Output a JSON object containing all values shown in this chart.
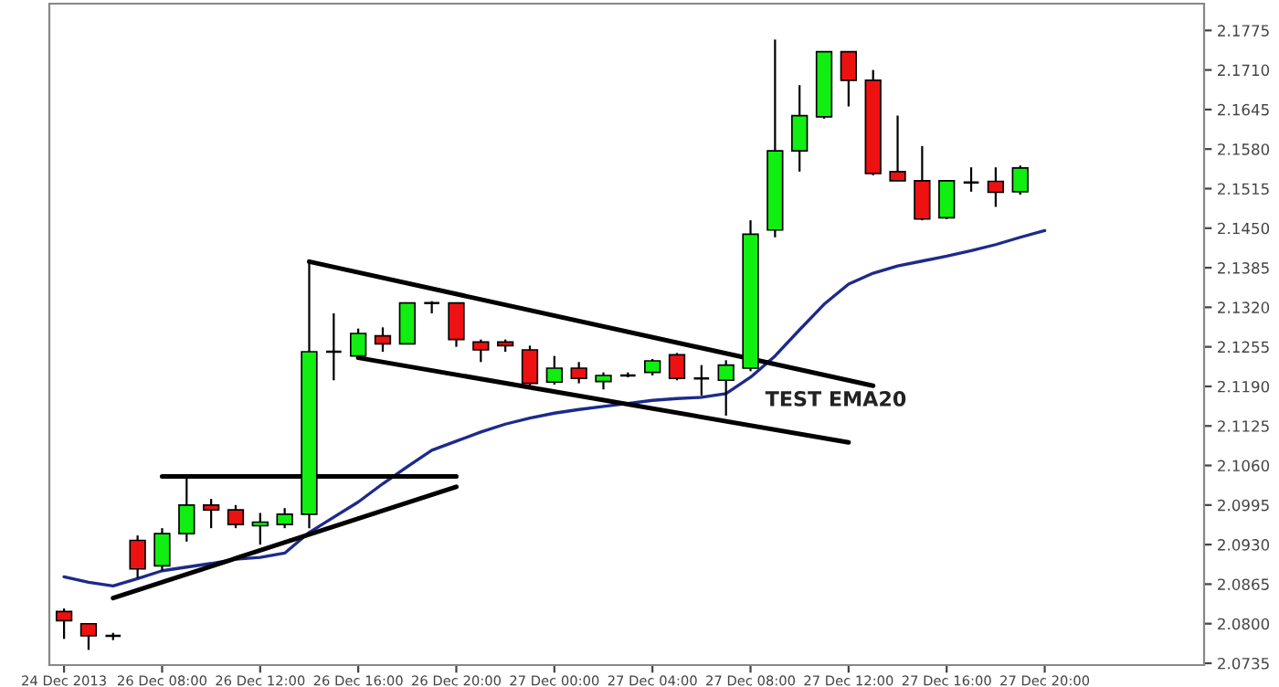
{
  "chart_data": {
    "type": "candlestick",
    "categories": [
      "24 Dec 2013",
      null,
      null,
      null,
      "26 Dec 08:00",
      null,
      null,
      null,
      "26 Dec 12:00",
      null,
      null,
      null,
      "26 Dec 16:00",
      null,
      null,
      null,
      "26 Dec 20:00",
      null,
      null,
      null,
      "27 Dec 00:00",
      null,
      null,
      null,
      "27 Dec 04:00",
      null,
      null,
      null,
      "27 Dec 08:00",
      null,
      null,
      null,
      "27 Dec 12:00",
      null,
      null,
      null,
      "27 Dec 16:00",
      null,
      null,
      null,
      "27 Dec 20:00",
      null,
      null,
      null,
      null,
      null,
      null
    ],
    "series": [
      {
        "ohlc": [
          [
            2.082,
            2.0825,
            2.0775,
            2.0805
          ],
          [
            2.08,
            2.08,
            2.0757,
            2.078
          ],
          [
            2.078,
            2.0785,
            2.0773,
            2.078
          ],
          [
            2.0937,
            2.0945,
            2.0875,
            2.089
          ],
          [
            2.0895,
            2.0957,
            2.0887,
            2.0948
          ],
          [
            2.0948,
            2.1042,
            2.0935,
            2.0995
          ],
          [
            2.0995,
            2.1005,
            2.0957,
            2.0987
          ],
          [
            2.0987,
            2.0995,
            2.0957,
            2.0963
          ],
          [
            2.0961,
            2.0982,
            2.093,
            2.0967
          ],
          [
            2.0963,
            2.099,
            2.0957,
            2.098
          ],
          [
            2.098,
            2.1395,
            2.0957,
            2.1247
          ],
          [
            2.1247,
            2.131,
            2.12,
            2.1247
          ],
          [
            2.124,
            2.1285,
            2.1235,
            2.1277
          ],
          [
            2.1273,
            2.1287,
            2.1247,
            2.126
          ],
          [
            2.126,
            2.1327,
            2.126,
            2.1327
          ],
          [
            2.1327,
            2.133,
            2.131,
            2.1327
          ],
          [
            2.1327,
            2.1327,
            2.1255,
            2.1267
          ],
          [
            2.1263,
            2.1267,
            2.123,
            2.125
          ],
          [
            2.1263,
            2.1267,
            2.1247,
            2.1257
          ],
          [
            2.125,
            2.1257,
            2.119,
            2.1195
          ],
          [
            2.1197,
            2.124,
            2.1193,
            2.122
          ],
          [
            2.122,
            2.123,
            2.1195,
            2.1203
          ],
          [
            2.1198,
            2.1213,
            2.1185,
            2.1208
          ],
          [
            2.1208,
            2.1213,
            2.1205,
            2.1208
          ],
          [
            2.1213,
            2.1235,
            2.1208,
            2.1232
          ],
          [
            2.1242,
            2.1245,
            2.12,
            2.1203
          ],
          [
            2.1203,
            2.1225,
            2.1175,
            2.1203
          ],
          [
            2.12,
            2.1233,
            2.1142,
            2.1225
          ],
          [
            2.122,
            2.1463,
            2.1215,
            2.144
          ],
          [
            2.1447,
            2.176,
            2.1435,
            2.1577
          ],
          [
            2.1577,
            2.1685,
            2.1543,
            2.1635
          ],
          [
            2.1633,
            2.174,
            2.163,
            2.174
          ],
          [
            2.174,
            2.174,
            2.165,
            2.1693
          ],
          [
            2.1693,
            2.171,
            2.1537,
            2.154
          ],
          [
            2.1543,
            2.1635,
            2.1528,
            2.1528
          ],
          [
            2.1528,
            2.1585,
            2.1463,
            2.1465
          ],
          [
            2.1467,
            2.1528,
            2.1465,
            2.1528
          ],
          [
            2.1525,
            2.155,
            2.151,
            2.1525
          ],
          [
            2.1527,
            2.155,
            2.1485,
            2.1509
          ],
          [
            2.151,
            2.1553,
            2.1505,
            2.1549
          ],
          null,
          null,
          null,
          null,
          null,
          null,
          null
        ],
        "colors": [
          "#ee1111",
          "#ee1111",
          "#000000",
          "#ee1111",
          "#11ee11",
          "#11ee11",
          "#ee1111",
          "#ee1111",
          "#11ee11",
          "#11ee11",
          "#11ee11",
          "#000000",
          "#11ee11",
          "#ee1111",
          "#11ee11",
          "#000000",
          "#ee1111",
          "#ee1111",
          "#ee1111",
          "#ee1111",
          "#11ee11",
          "#ee1111",
          "#11ee11",
          "#000000",
          "#11ee11",
          "#ee1111",
          "#000000",
          "#11ee11",
          "#11ee11",
          "#11ee11",
          "#11ee11",
          "#11ee11",
          "#ee1111",
          "#ee1111",
          "#ee1111",
          "#ee1111",
          "#11ee11",
          "#000000",
          "#ee1111",
          "#11ee11",
          null,
          null,
          null,
          null,
          null,
          null,
          null
        ]
      },
      {
        "type": "line",
        "color": "#1c2a8c",
        "values": [
          2.0877,
          2.0868,
          2.0862,
          2.0874,
          2.0887,
          2.0893,
          2.0899,
          2.0906,
          2.0909,
          2.0916,
          2.095,
          2.0975,
          2.1,
          2.103,
          2.1058,
          2.1085,
          2.11,
          2.1115,
          2.1128,
          2.1138,
          2.1146,
          2.1152,
          2.1157,
          2.1162,
          2.1167,
          2.117,
          2.1172,
          2.1178,
          2.1205,
          2.124,
          2.1283,
          2.1325,
          2.1358,
          2.1376,
          2.1388,
          2.1396,
          2.1404,
          2.1413,
          2.1423,
          2.1435,
          2.1446,
          null,
          null,
          null,
          null,
          null,
          null
        ]
      },
      {
        "type": "line",
        "color": "#000000",
        "values": [
          null,
          null,
          null,
          null,
          2.1042,
          null,
          null,
          null,
          null,
          null,
          null,
          null,
          null,
          null,
          null,
          null,
          2.1042,
          null,
          null,
          null,
          null,
          null,
          null,
          null,
          null,
          null,
          null,
          null,
          null,
          null,
          null,
          null,
          null,
          null,
          null,
          null,
          null,
          null,
          null,
          null,
          null,
          null,
          null,
          null,
          null,
          null,
          null
        ]
      },
      {
        "type": "line",
        "color": "#000000",
        "values": [
          null,
          null,
          2.0842,
          null,
          null,
          null,
          null,
          null,
          null,
          null,
          null,
          null,
          null,
          null,
          null,
          null,
          2.1025,
          null,
          null,
          null,
          null,
          null,
          null,
          null,
          null,
          null,
          null,
          null,
          null,
          null,
          null,
          null,
          null,
          null,
          null,
          null,
          null,
          null,
          null,
          null,
          null,
          null,
          null,
          null,
          null,
          null,
          null
        ]
      },
      {
        "type": "line",
        "color": "#000000",
        "values": [
          null,
          null,
          null,
          null,
          null,
          null,
          null,
          null,
          null,
          null,
          2.1395,
          null,
          null,
          null,
          null,
          null,
          null,
          null,
          null,
          null,
          null,
          null,
          null,
          null,
          null,
          null,
          null,
          null,
          null,
          null,
          null,
          null,
          null,
          2.1191,
          null,
          null,
          null,
          null,
          null,
          null,
          null,
          null,
          null,
          null,
          null,
          null,
          null
        ]
      },
      {
        "type": "line",
        "color": "#000000",
        "values": [
          null,
          null,
          null,
          null,
          null,
          null,
          null,
          null,
          null,
          null,
          null,
          null,
          2.1237,
          null,
          null,
          null,
          null,
          null,
          null,
          null,
          null,
          null,
          null,
          null,
          null,
          null,
          null,
          null,
          null,
          null,
          null,
          null,
          2.1098,
          null,
          null,
          null,
          null,
          null,
          null,
          null,
          null,
          null,
          null,
          null,
          null,
          null,
          null
        ]
      }
    ],
    "ylim": [
      2.0732,
      2.1819
    ],
    "yticks": [
      {
        "value": 2.0735,
        "label": "2.0735"
      },
      {
        "value": 2.08,
        "label": "2.0800"
      },
      {
        "value": 2.0865,
        "label": "2.0865"
      },
      {
        "value": 2.093,
        "label": "2.0930"
      },
      {
        "value": 2.0995,
        "label": "2.0995"
      },
      {
        "value": 2.106,
        "label": "2.1060"
      },
      {
        "value": 2.1125,
        "label": "2.1125"
      },
      {
        "value": 2.119,
        "label": "2.1190"
      },
      {
        "value": 2.1255,
        "label": "2.1255"
      },
      {
        "value": 2.132,
        "label": "2.1320"
      },
      {
        "value": 2.1385,
        "label": "2.1385"
      },
      {
        "value": 2.145,
        "label": "2.1450"
      },
      {
        "value": 2.1515,
        "label": "2.1515"
      },
      {
        "value": 2.158,
        "label": "2.1580"
      },
      {
        "value": 2.1645,
        "label": "2.1645"
      },
      {
        "value": 2.171,
        "label": "2.1710"
      },
      {
        "value": 2.1775,
        "label": "2.1775"
      }
    ],
    "annotations": [
      "TEST EMA20"
    ],
    "grid": false,
    "legend": false
  }
}
